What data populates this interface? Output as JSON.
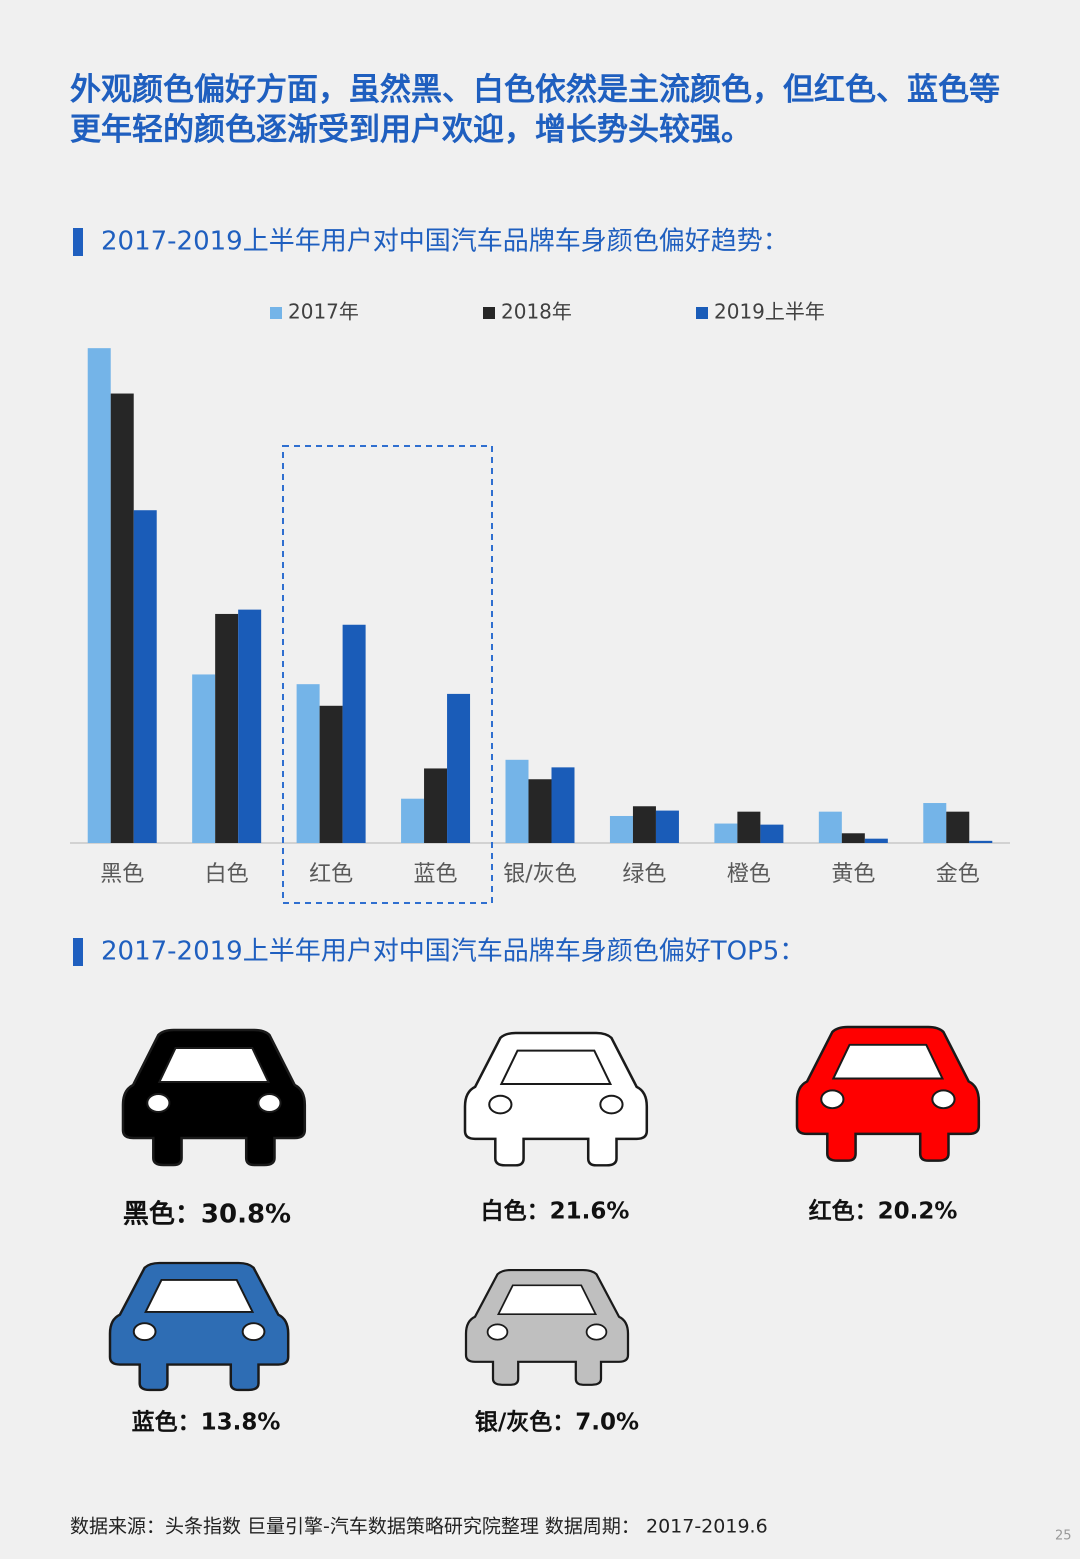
{
  "header": {
    "title": "外观颜色偏好方面，虽然黑、白色依然是主流颜色，但红色、蓝色等更年轻的颜色逐渐受到用户欢迎，增长势头较强。"
  },
  "chart_data": {
    "type": "bar",
    "title": "2017-2019上半年用户对中国汽车品牌车身颜色偏好趋势：",
    "categories": [
      "黑色",
      "白色",
      "红色",
      "蓝色",
      "银/灰色",
      "绿色",
      "橙色",
      "黄色",
      "金色"
    ],
    "series": [
      {
        "name": "2017年",
        "color": "#74b4e8",
        "values": [
          45.8,
          15.6,
          14.7,
          4.1,
          7.7,
          2.5,
          1.8,
          2.9,
          3.7
        ]
      },
      {
        "name": "2018年",
        "color": "#262626",
        "values": [
          41.6,
          21.2,
          12.7,
          6.9,
          5.9,
          3.4,
          2.9,
          0.9,
          2.9
        ]
      },
      {
        "name": "2019上半年",
        "color": "#1a5cb8",
        "values": [
          30.8,
          21.6,
          20.2,
          13.8,
          7.0,
          3.0,
          1.7,
          0.4,
          0.2
        ]
      }
    ],
    "ylim": [
      0,
      46
    ],
    "grid": false
  },
  "top5": {
    "title": "2017-2019上半年用户对中国汽车品牌车身颜色偏好TOP5：",
    "items": [
      {
        "label": "黑色：30.8%",
        "color": "#000000"
      },
      {
        "label": "白色：21.6%",
        "color": "#ffffff"
      },
      {
        "label": "红色：20.2%",
        "color": "#ff0000"
      },
      {
        "label": "蓝色：13.8%",
        "color": "#2e6db4"
      },
      {
        "label": "银/灰色：7.0%",
        "color": "#bfbfbf"
      }
    ]
  },
  "footer": {
    "source": "数据来源：头条指数  巨量引擎-汽车数据策略研究院整理  数据周期： 2017-2019.6",
    "page": "25"
  }
}
